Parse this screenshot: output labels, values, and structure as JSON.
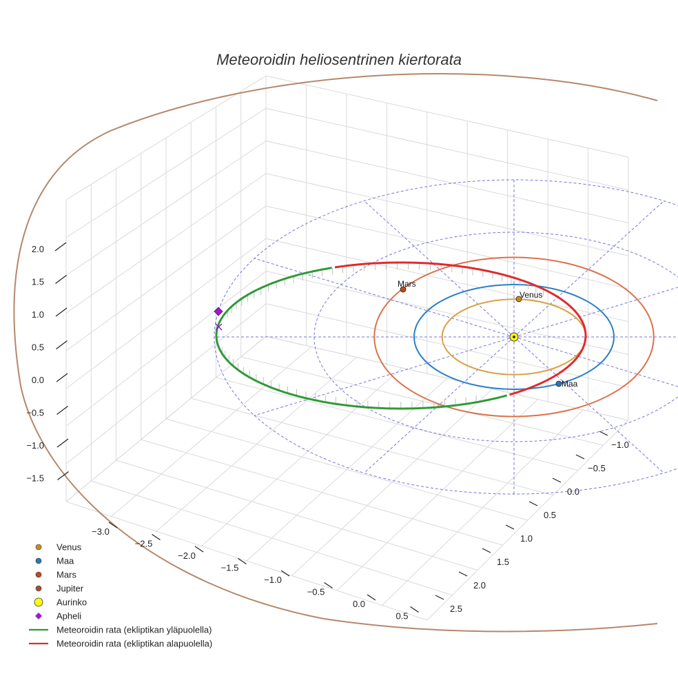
{
  "chart_data": {
    "type": "line",
    "projection": "3d",
    "title": "Meteoroidin heliosentrinen kiertorata",
    "axes": {
      "z_ticks": [
        "2.0",
        "1.5",
        "1.0",
        "0.5",
        "0.0",
        "−0.5",
        "−1.0",
        "−1.5"
      ],
      "x_ticks": [
        "−3.0",
        "−2.5",
        "−2.0",
        "−1.5",
        "−1.0",
        "−0.5",
        "0.0",
        "0.5"
      ],
      "y_ticks": [
        "−1.0",
        "−0.5",
        "0.0",
        "0.5",
        "1.0",
        "1.5",
        "2.0",
        "2.5"
      ]
    },
    "planets": [
      {
        "name": "Venus",
        "label": "Venus",
        "orbit_radius_au": 0.72,
        "color": "#cc8a1a",
        "orbit_color": "#d9a14a"
      },
      {
        "name": "Maa",
        "label": "Maa",
        "orbit_radius_au": 1.0,
        "color": "#2878b8",
        "orbit_color": "#2a7fc8"
      },
      {
        "name": "Mars",
        "label": "Mars",
        "orbit_radius_au": 1.52,
        "color": "#c04a1c",
        "orbit_color": "#dd7048"
      },
      {
        "name": "Jupiter",
        "label": "",
        "orbit_radius_au": 5.2,
        "color": "#a0522d",
        "orbit_color": "#b5876a"
      }
    ],
    "sun": {
      "name": "Aurinko",
      "color": "#ffff00"
    },
    "aphelion": {
      "name": "Apheli",
      "color": "#9a1ccd"
    },
    "meteoroid_orbit": {
      "above_label": "Meteoroidin rata (ekliptikan yläpuolella)",
      "below_label": "Meteoroidin rata (ekliptikan alapuolella)",
      "above_color": "#2e9a35",
      "below_color": "#e02a2a"
    },
    "reference_grid": {
      "color": "#6464dc",
      "rings": 3,
      "spokes": 12
    },
    "legend": {
      "position": "bottom-left",
      "entries": [
        {
          "label": "Venus",
          "marker": "dot",
          "color": "#cc8a1a"
        },
        {
          "label": "Maa",
          "marker": "dot",
          "color": "#2878b8"
        },
        {
          "label": "Mars",
          "marker": "dot",
          "color": "#c04a1c"
        },
        {
          "label": "Jupiter",
          "marker": "dot",
          "color": "#a0522d"
        },
        {
          "label": "Aurinko",
          "marker": "bigdot",
          "color": "#ffff00"
        },
        {
          "label": "Apheli",
          "marker": "diamond",
          "color": "#9a1ccd"
        },
        {
          "label": "Meteoroidin rata (ekliptikan yläpuolella)",
          "marker": "line",
          "color": "#2e9a35"
        },
        {
          "label": "Meteoroidin rata (ekliptikan alapuolella)",
          "marker": "line",
          "color": "#e02a2a"
        }
      ]
    }
  }
}
